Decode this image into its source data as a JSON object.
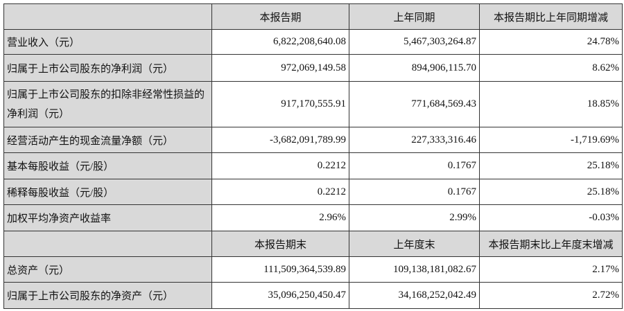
{
  "header1": [
    "",
    "本报告期",
    "上年同期",
    "本报告期比上年同期增减"
  ],
  "rows1": [
    {
      "label": "营业收入（元）",
      "values": [
        "6,822,208,640.08",
        "5,467,303,264.87",
        "24.78%"
      ]
    },
    {
      "label": "归属于上市公司股东的净利润（元）",
      "values": [
        "972,069,149.58",
        "894,906,115.70",
        "8.62%"
      ]
    },
    {
      "label": "归属于上市公司股东的扣除非经常性损益的净利润（元）",
      "values": [
        "917,170,555.91",
        "771,684,569.43",
        "18.85%"
      ]
    },
    {
      "label": "经营活动产生的现金流量净额（元）",
      "values": [
        "-3,682,091,789.99",
        "227,333,316.46",
        "-1,719.69%"
      ]
    },
    {
      "label": "基本每股收益（元/股）",
      "values": [
        "0.2212",
        "0.1767",
        "25.18%"
      ]
    },
    {
      "label": "稀释每股收益（元/股）",
      "values": [
        "0.2212",
        "0.1767",
        "25.18%"
      ]
    },
    {
      "label": "加权平均净资产收益率",
      "values": [
        "2.96%",
        "2.99%",
        "-0.03%"
      ]
    }
  ],
  "header2": [
    "",
    "本报告期末",
    "上年度末",
    "本报告期末比上年度末增减"
  ],
  "rows2": [
    {
      "label": "总资产（元）",
      "values": [
        "111,509,364,539.89",
        "109,138,181,082.67",
        "2.17%"
      ]
    },
    {
      "label": "归属于上市公司股东的净资产（元）",
      "values": [
        "35,096,250,450.47",
        "34,168,252,042.49",
        "2.72%"
      ]
    }
  ]
}
